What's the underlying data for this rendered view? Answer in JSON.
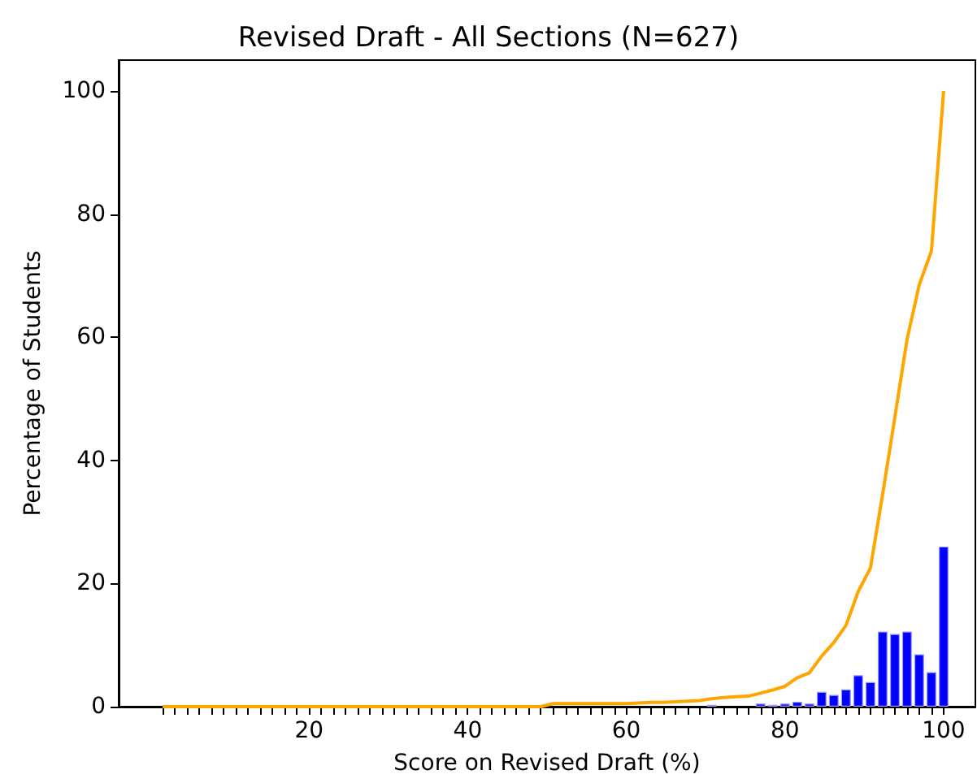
{
  "chart_data": {
    "type": "bar",
    "title": "Revised Draft - All Sections (N=627)",
    "xlabel": "Score on Revised Draft (%)",
    "ylabel": "Percentage of Students",
    "x": [
      1.54,
      3.08,
      4.62,
      6.15,
      7.69,
      9.23,
      10.77,
      12.31,
      13.85,
      15.38,
      16.92,
      18.46,
      20,
      21.54,
      23.08,
      24.62,
      26.15,
      27.69,
      29.23,
      30.77,
      32.31,
      33.85,
      35.38,
      36.92,
      38.46,
      40,
      41.54,
      43.08,
      44.62,
      46.15,
      47.69,
      49.23,
      50.77,
      52.31,
      53.85,
      55.38,
      56.92,
      58.46,
      60,
      61.54,
      63.08,
      64.62,
      66.15,
      67.69,
      69.23,
      70.77,
      72.31,
      73.85,
      75.38,
      76.92,
      78.46,
      80,
      81.54,
      83.08,
      84.62,
      86.15,
      87.69,
      89.23,
      90.77,
      92.31,
      93.85,
      95.38,
      96.92,
      98.46,
      100
    ],
    "series": [
      {
        "color": "#0000ff",
        "x": [
          70.77,
          76.92,
          78.46,
          80,
          81.54,
          83.08,
          84.62,
          86.15,
          87.69,
          89.23,
          90.77,
          92.31,
          93.85,
          95.38,
          96.92,
          98.46,
          100
        ],
        "values": [
          0.3,
          0.5,
          0.3,
          0.5,
          0.8,
          0.5,
          2.4,
          1.9,
          2.8,
          5.1,
          4.0,
          12.2,
          11.8,
          12.2,
          8.5,
          5.6,
          26.0
        ]
      },
      {
        "type": "line",
        "color": "#ffa500",
        "values": [
          0,
          0,
          0,
          0,
          0,
          0,
          0,
          0,
          0,
          0,
          0,
          0,
          0,
          0,
          0,
          0,
          0,
          0,
          0,
          0,
          0,
          0,
          0,
          0,
          0,
          0,
          0,
          0,
          0,
          0,
          0,
          0,
          0.5,
          0.5,
          0.5,
          0.5,
          0.5,
          0.5,
          0.5,
          0.6,
          0.7,
          0.7,
          0.8,
          0.9,
          1.0,
          1.3,
          1.5,
          1.6,
          1.7,
          2.2,
          2.7,
          3.3,
          4.7,
          5.5,
          8.2,
          10.4,
          13.2,
          18.7,
          22.5,
          34.5,
          47.0,
          59.6,
          68.5,
          74.0,
          100
        ]
      }
    ],
    "xlim": [
      -4,
      104
    ],
    "ylim": [
      0,
      105
    ],
    "xticks": [
      {
        "value": 1.54,
        "label": null
      },
      {
        "value": 3.08,
        "label": null
      },
      {
        "value": 4.62,
        "label": null
      },
      {
        "value": 6.15,
        "label": null
      },
      {
        "value": 7.69,
        "label": null
      },
      {
        "value": 9.23,
        "label": null
      },
      {
        "value": 10.77,
        "label": null
      },
      {
        "value": 12.31,
        "label": null
      },
      {
        "value": 13.85,
        "label": null
      },
      {
        "value": 15.38,
        "label": null
      },
      {
        "value": 16.92,
        "label": null
      },
      {
        "value": 18.46,
        "label": null
      },
      20,
      {
        "value": 21.54,
        "label": null
      },
      {
        "value": 23.08,
        "label": null
      },
      {
        "value": 24.62,
        "label": null
      },
      {
        "value": 26.15,
        "label": null
      },
      {
        "value": 27.69,
        "label": null
      },
      {
        "value": 29.23,
        "label": null
      },
      {
        "value": 30.77,
        "label": null
      },
      {
        "value": 32.31,
        "label": null
      },
      {
        "value": 33.85,
        "label": null
      },
      {
        "value": 35.38,
        "label": null
      },
      {
        "value": 36.92,
        "label": null
      },
      {
        "value": 38.46,
        "label": null
      },
      40,
      {
        "value": 41.54,
        "label": null
      },
      {
        "value": 43.08,
        "label": null
      },
      {
        "value": 44.62,
        "label": null
      },
      {
        "value": 46.15,
        "label": null
      },
      {
        "value": 47.69,
        "label": null
      },
      {
        "value": 49.23,
        "label": null
      },
      {
        "value": 50.77,
        "label": null
      },
      {
        "value": 52.31,
        "label": null
      },
      {
        "value": 53.85,
        "label": null
      },
      {
        "value": 55.38,
        "label": null
      },
      {
        "value": 56.92,
        "label": null
      },
      {
        "value": 58.46,
        "label": null
      },
      60,
      {
        "value": 61.54,
        "label": null
      },
      {
        "value": 63.08,
        "label": null
      },
      {
        "value": 64.62,
        "label": null
      },
      {
        "value": 66.15,
        "label": null
      },
      {
        "value": 67.69,
        "label": null
      },
      {
        "value": 69.23,
        "label": null
      },
      {
        "value": 70.77,
        "label": null
      },
      {
        "value": 72.31,
        "label": null
      },
      {
        "value": 73.85,
        "label": null
      },
      {
        "value": 75.38,
        "label": null
      },
      {
        "value": 76.92,
        "label": null
      },
      {
        "value": 78.46,
        "label": null
      },
      80,
      {
        "value": 81.54,
        "label": null
      },
      {
        "value": 83.08,
        "label": null
      },
      {
        "value": 84.62,
        "label": null
      },
      {
        "value": 86.15,
        "label": null
      },
      {
        "value": 87.69,
        "label": null
      },
      {
        "value": 89.23,
        "label": null
      },
      {
        "value": 90.77,
        "label": null
      },
      {
        "value": 92.31,
        "label": null
      },
      {
        "value": 93.85,
        "label": null
      },
      {
        "value": 95.38,
        "label": null
      },
      {
        "value": 96.92,
        "label": null
      },
      {
        "value": 98.46,
        "label": null
      },
      100
    ],
    "yticks": [
      0,
      20,
      40,
      60,
      80,
      100
    ],
    "grid": false
  }
}
